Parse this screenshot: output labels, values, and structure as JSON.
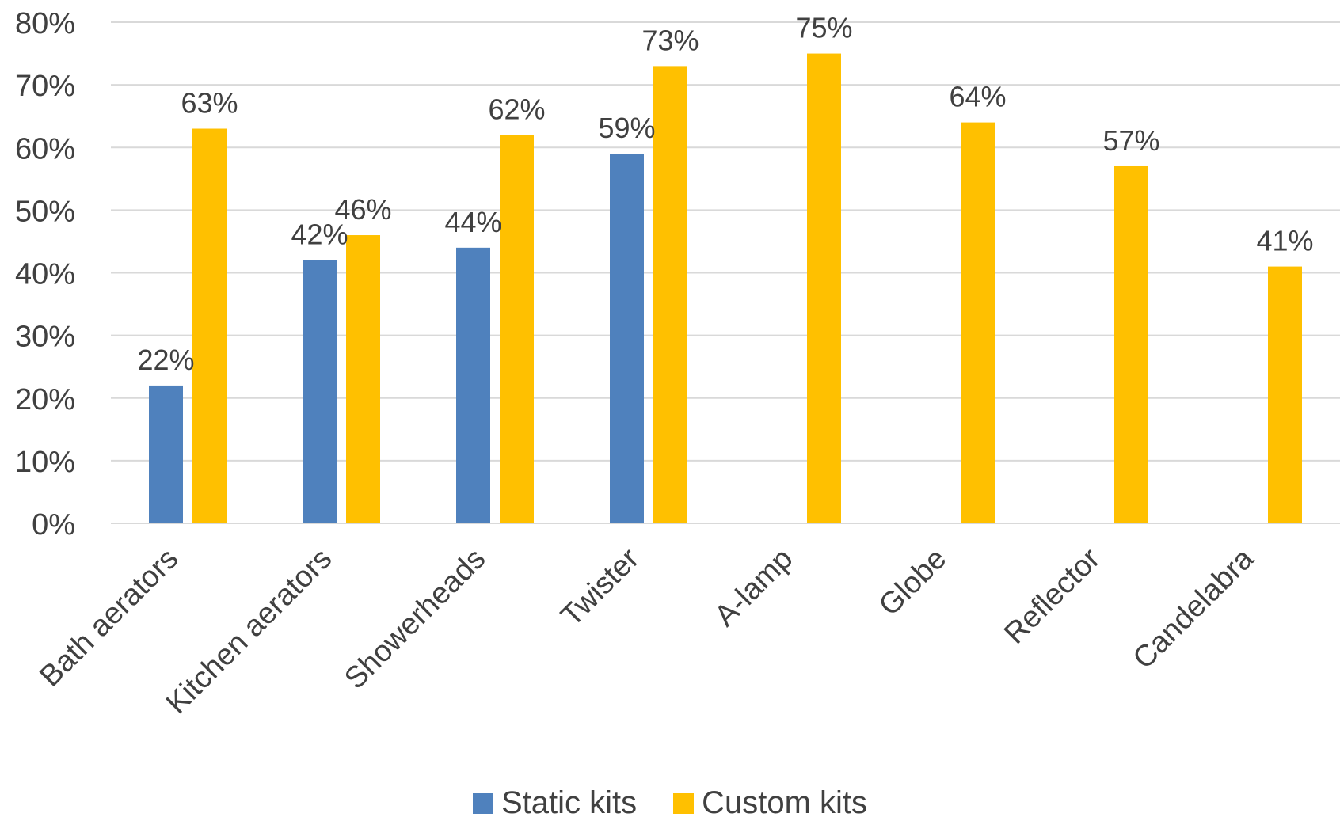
{
  "chart_data": {
    "type": "bar",
    "title": "",
    "xlabel": "",
    "ylabel": "",
    "categories": [
      "Bath aerators",
      "Kitchen aerators",
      "Showerheads",
      "Twister",
      "A-lamp",
      "Globe",
      "Reflector",
      "Candelabra"
    ],
    "series": [
      {
        "name": "Static kits",
        "color": "#4F81BD",
        "values": [
          22,
          42,
          44,
          59,
          null,
          null,
          null,
          null
        ],
        "labels": [
          "22%",
          "42%",
          "44%",
          "59%",
          "",
          "",
          "",
          ""
        ]
      },
      {
        "name": "Custom kits",
        "color": "#FFC000",
        "values": [
          63,
          46,
          62,
          73,
          75,
          64,
          57,
          41
        ],
        "labels": [
          "63%",
          "46%",
          "62%",
          "73%",
          "75%",
          "64%",
          "57%",
          "41%"
        ]
      }
    ],
    "ylim": [
      0,
      80
    ],
    "yticks": [
      0,
      10,
      20,
      30,
      40,
      50,
      60,
      70,
      80
    ],
    "ytick_labels": [
      "0%",
      "10%",
      "20%",
      "30%",
      "40%",
      "50%",
      "60%",
      "70%",
      "80%"
    ],
    "grid": true,
    "legend_position": "bottom"
  },
  "legend": {
    "static_label": "Static kits",
    "custom_label": "Custom kits"
  },
  "colors": {
    "static": "#4F81BD",
    "custom": "#FFC000",
    "grid": "#D9D9D9",
    "text": "#404040"
  }
}
